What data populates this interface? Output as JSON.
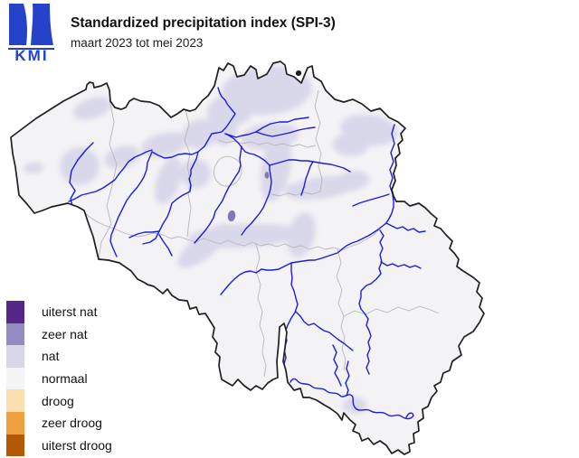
{
  "header": {
    "logo_text": "KMI",
    "logo_color": "#2543c8",
    "title": "Standardized precipitation index (SPI-3)",
    "subtitle": "maart 2023 tot mei 2023"
  },
  "legend": {
    "items": [
      {
        "label": "uiterst nat",
        "color": "#542788"
      },
      {
        "label": "zeer nat",
        "color": "#948bc1"
      },
      {
        "label": "nat",
        "color": "#d8d6e9"
      },
      {
        "label": "normaal",
        "color": "#f4f4f4"
      },
      {
        "label": "droog",
        "color": "#fbdfb1"
      },
      {
        "label": "zeer droog",
        "color": "#efa23f"
      },
      {
        "label": "uiterst droog",
        "color": "#b35806"
      }
    ]
  },
  "map": {
    "border_color": "#1f1f1f",
    "boundary_color": "#b7b7b7",
    "river_color": "#1c1ce0",
    "fill_normal": "#f3f2f5",
    "fill_nat": "#d9d8ea",
    "fill_zeer_nat": "#8177b8"
  }
}
